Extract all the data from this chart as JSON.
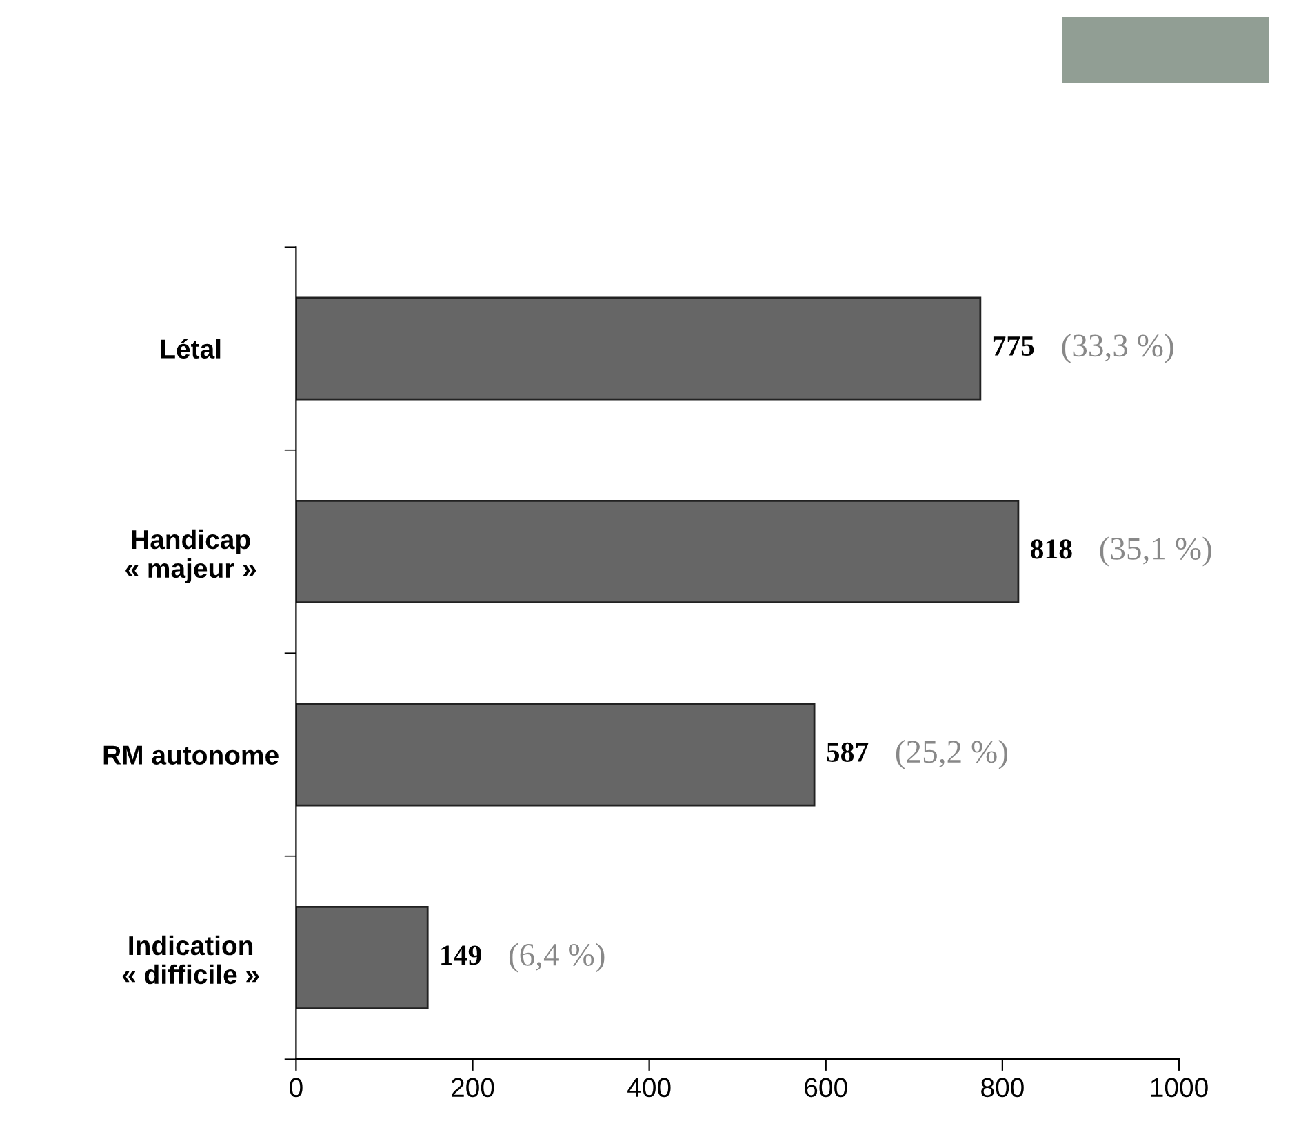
{
  "chart_data": {
    "type": "bar",
    "orientation": "horizontal",
    "categories": [
      "Létal",
      "Handicap\n« majeur »",
      "RM autonome",
      "Indication\n« difficile »"
    ],
    "values": [
      775,
      818,
      587,
      149
    ],
    "color": "#666666",
    "value_labels": [
      "775",
      "818",
      "587",
      "149"
    ],
    "annotations": [
      {
        "text": "(33,3 %)",
        "x": 775,
        "y": "Létal"
      },
      {
        "text": "(35,1 %)",
        "x": 818,
        "y": "Handicap\n« majeur »"
      },
      {
        "text": "(25,2 %)",
        "x": 587,
        "y": "RM autonome"
      },
      {
        "text": "(6,4 %)",
        "x": 149,
        "y": "Indication\n« difficile »"
      }
    ],
    "xlim": [
      0,
      1000
    ],
    "xticks": [
      0,
      200,
      400,
      600,
      800,
      1000
    ],
    "grid": false,
    "legend": false
  }
}
